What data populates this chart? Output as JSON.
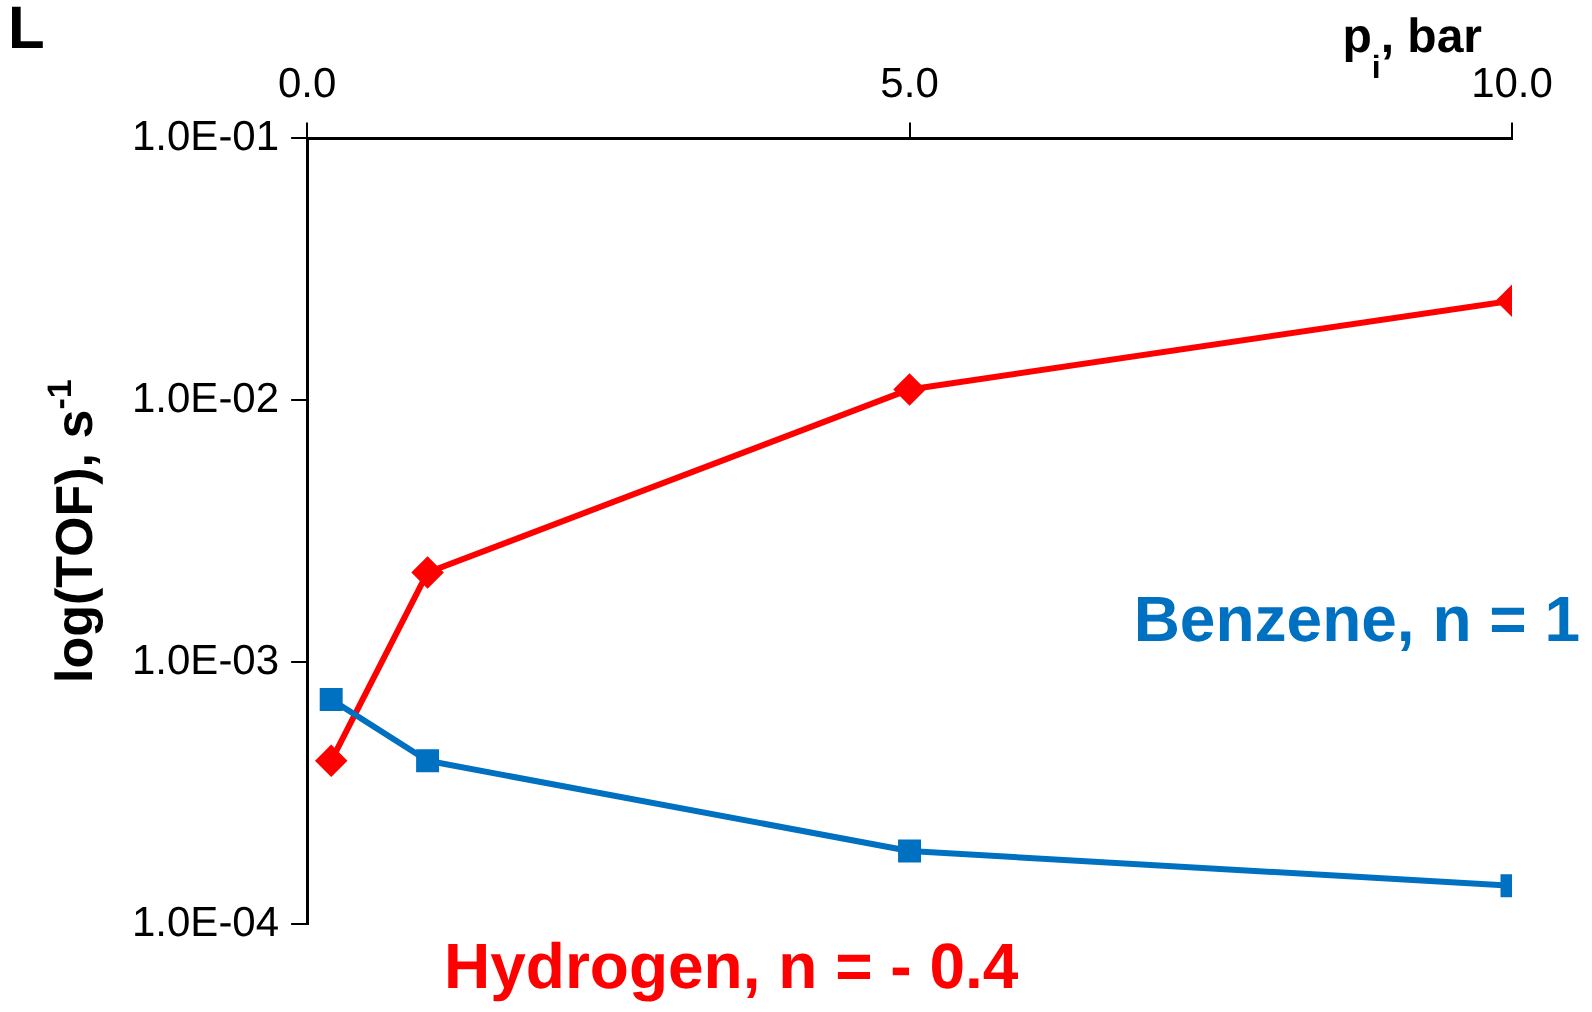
{
  "chart_data": {
    "type": "line",
    "xlabel": "p$_{i}$, bar",
    "ylabel": "log(TOF), s$^{-1}$",
    "annotations": [
      "L"
    ],
    "x": [
      0.2,
      1.0,
      5.0,
      10.0
    ],
    "series": [
      {
        "name": "Benzene, n = 1",
        "color": "#0070c0",
        "marker": "square",
        "values": [
          0.00072,
          0.00042,
          0.00019,
          0.00014
        ]
      },
      {
        "name": "Hydrogen, n = - 0.4",
        "color": "#ff0000",
        "marker": "diamond",
        "values": [
          0.00042,
          0.0022,
          0.011,
          0.024
        ]
      }
    ],
    "xlim": [
      0,
      10
    ],
    "xticks": [
      {
        "value": 0,
        "label": "0.0"
      },
      {
        "value": 5,
        "label": "5.0"
      },
      {
        "value": 10,
        "label": "10.0"
      }
    ],
    "ylim": [
      0.0001,
      0.1
    ],
    "yticks": [
      {
        "value": 0.0001,
        "label": "1.0E-04"
      },
      {
        "value": 0.001,
        "label": "1.0E-03"
      },
      {
        "value": 0.01,
        "label": "1.0E-02"
      },
      {
        "value": 0.1,
        "label": "1.0E-01"
      }
    ],
    "log": "y",
    "grid": false,
    "legend": false,
    "line_style": "solid"
  }
}
